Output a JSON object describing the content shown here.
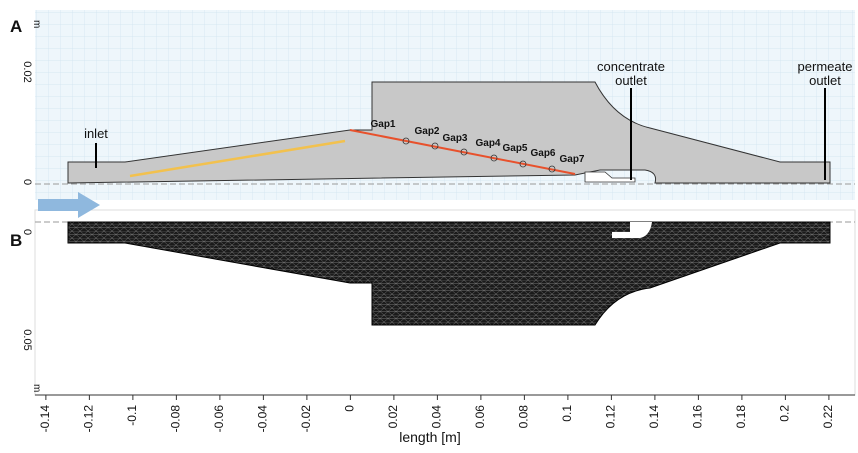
{
  "panels": [
    {
      "label": "A",
      "y_unit": "m",
      "y_ticks": [
        "0.02",
        "0"
      ]
    },
    {
      "label": "B",
      "y_unit": "m",
      "y_ticks": [
        "0",
        "0.05"
      ]
    }
  ],
  "labels": {
    "inlet": "inlet",
    "gaps": [
      "Gap1",
      "Gap2",
      "Gap3",
      "Gap4",
      "Gap5",
      "Gap6",
      "Gap7"
    ],
    "concentrate_outlet": [
      "concentrate",
      "outlet"
    ],
    "permeate_outlet": [
      "permeate",
      "outlet"
    ]
  },
  "x_axis": {
    "label": "length [m]",
    "xlim": [
      -0.145,
      0.232
    ],
    "xticks": [
      -0.14,
      -0.12,
      -0.1,
      -0.08,
      -0.06,
      -0.04,
      -0.02,
      0,
      0.02,
      0.04,
      0.06,
      0.08,
      0.1,
      0.12,
      0.14,
      0.16,
      0.18,
      0.2,
      0.22
    ]
  }
}
